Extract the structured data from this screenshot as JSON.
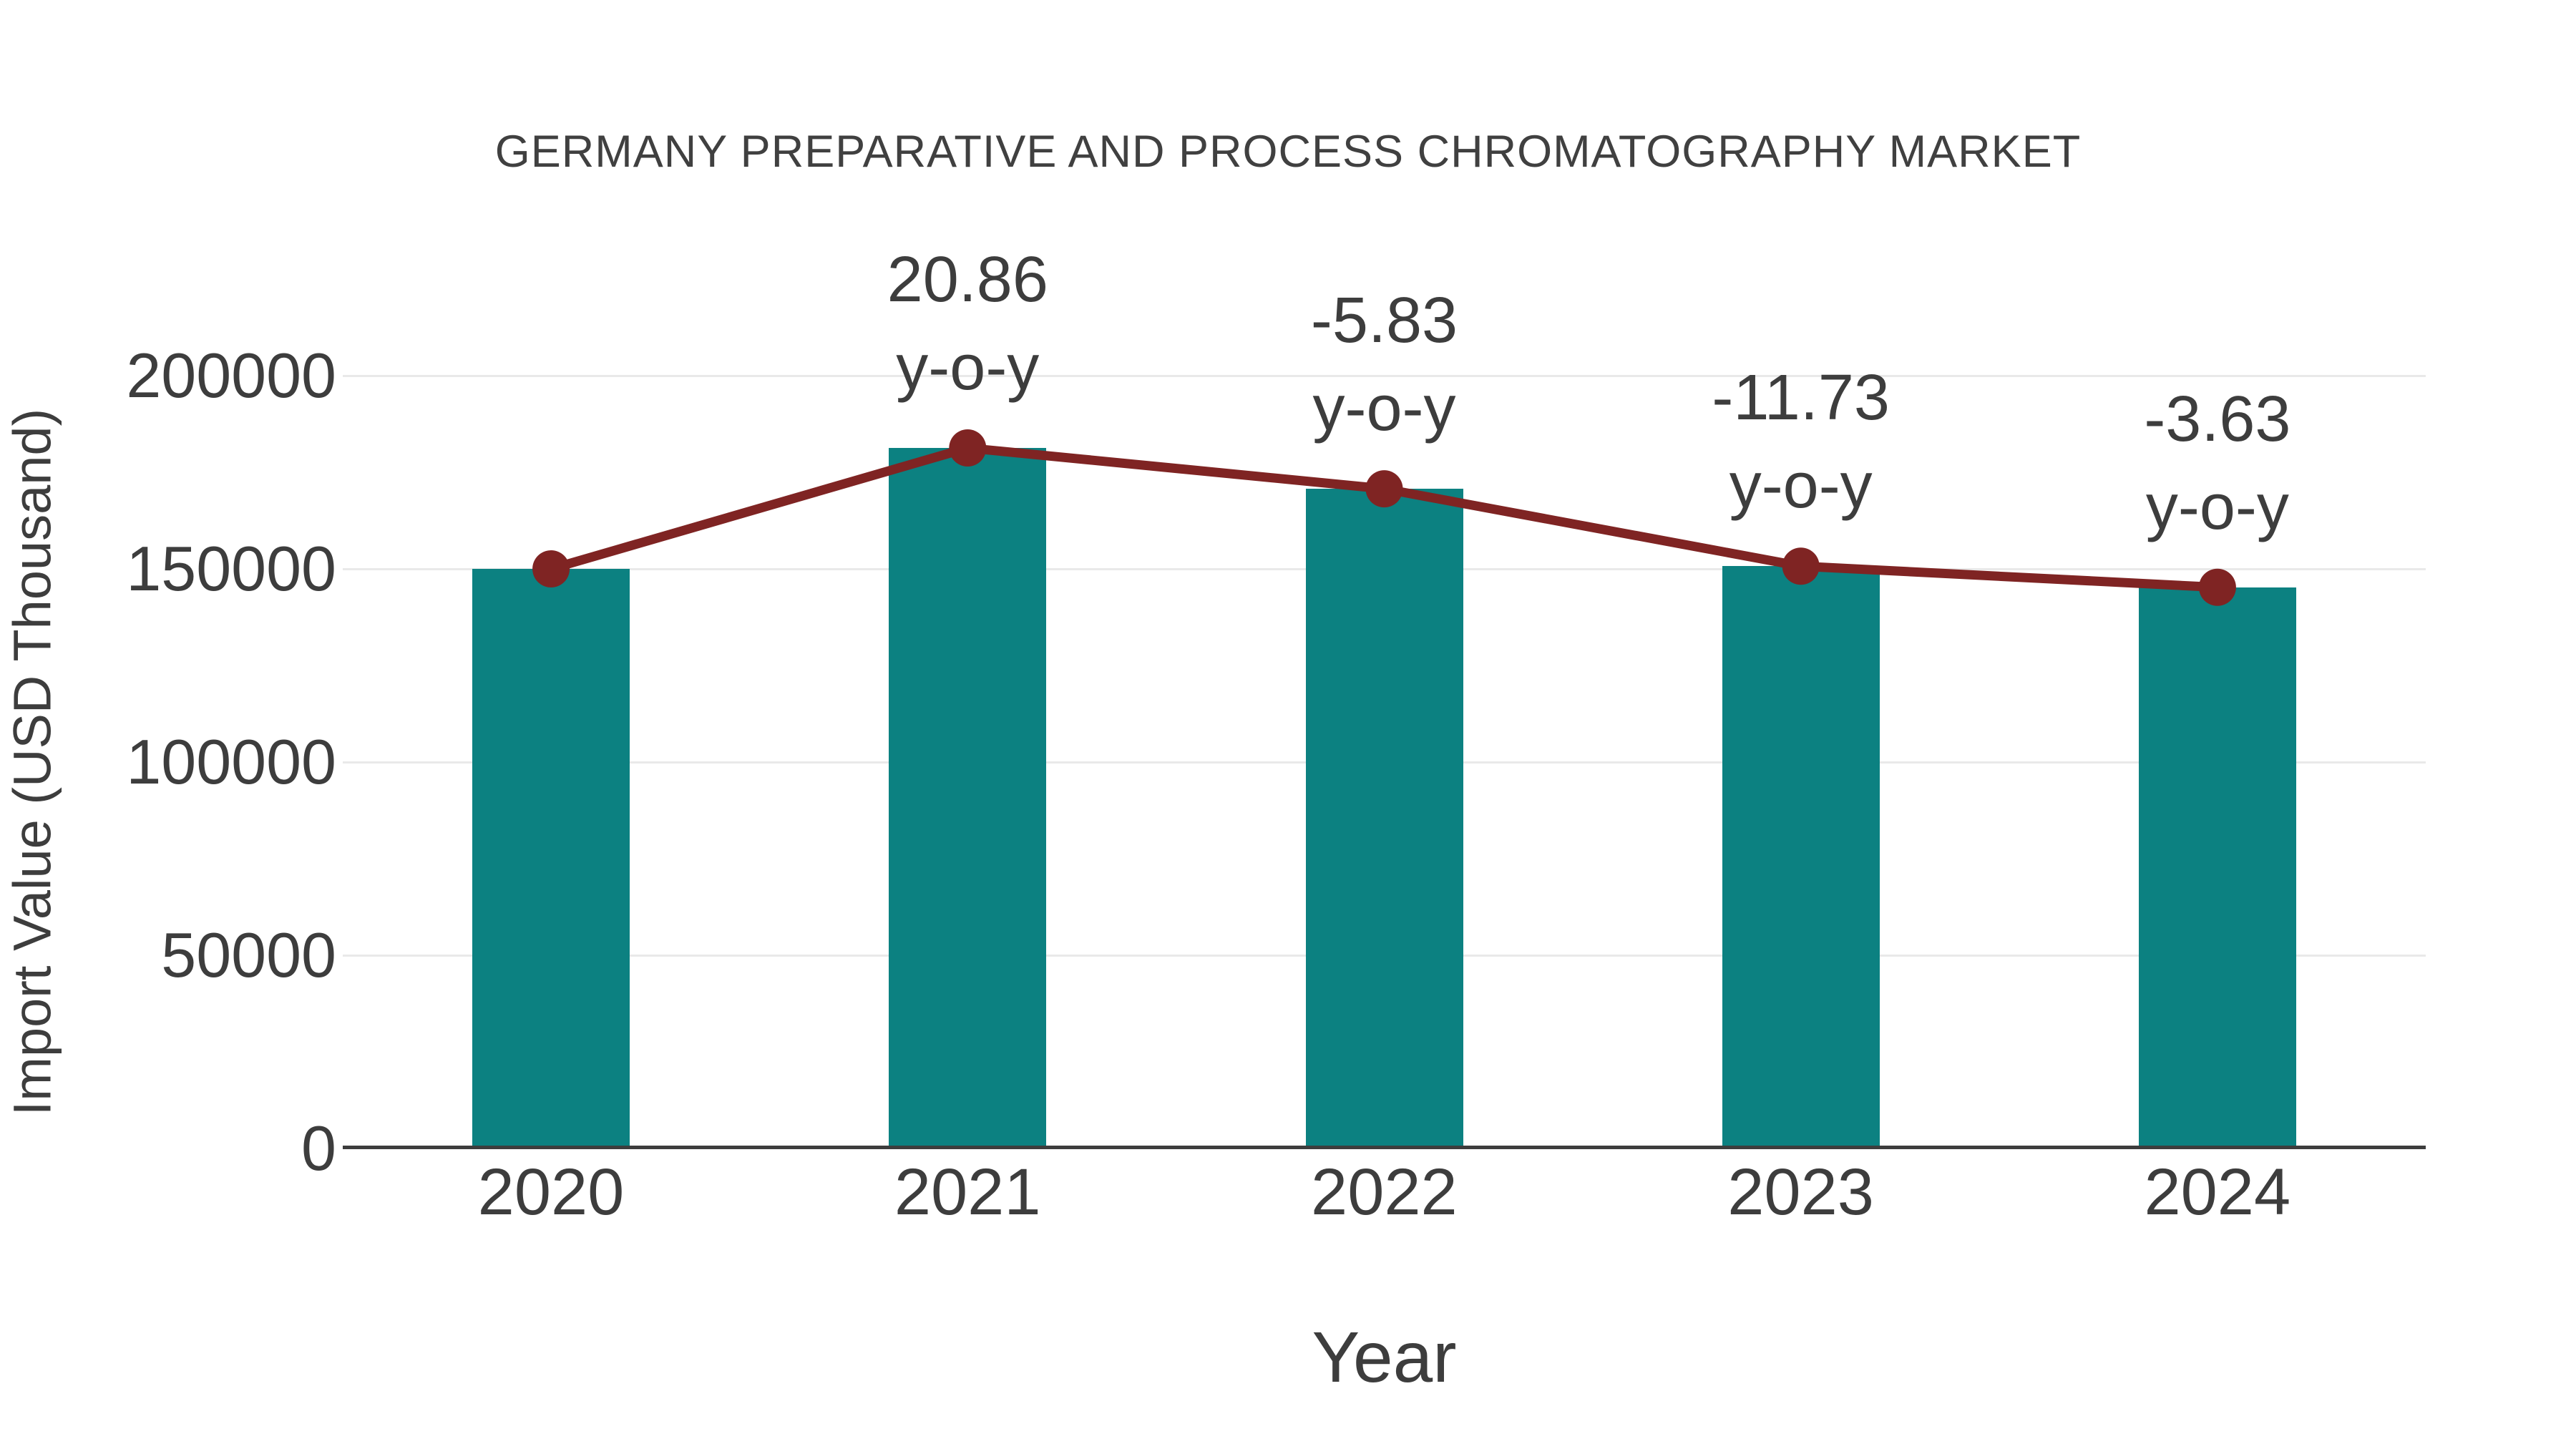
{
  "title": "GERMANY PREPARATIVE AND PROCESS CHROMATOGRAPHY MARKET",
  "axes": {
    "x_label": "Year",
    "y_label": "Import Value (USD Thousand)",
    "y_tick_labels": [
      "0",
      "50000",
      "100000",
      "150000",
      "200000"
    ]
  },
  "chart_data": {
    "type": "bar+line",
    "title": "GERMANY PREPARATIVE AND PROCESS CHROMATOGRAPHY MARKET",
    "xlabel": "Year",
    "ylabel": "Import Value (USD Thousand)",
    "categories": [
      "2020",
      "2021",
      "2022",
      "2023",
      "2024"
    ],
    "series": [
      {
        "name": "Import Value bars",
        "type": "bar",
        "values": [
          150000,
          181290,
          170721,
          150694,
          145224
        ]
      },
      {
        "name": "Import Value trend line",
        "type": "line",
        "values": [
          150000,
          181290,
          170721,
          150694,
          145224
        ]
      }
    ],
    "yoy_labels": [
      null,
      "20.86",
      "-5.83",
      "-11.73",
      "-3.63"
    ],
    "annotation_suffix": "y-o-y",
    "y_ticks": [
      0,
      50000,
      100000,
      150000,
      200000
    ],
    "ylim": [
      0,
      234000
    ],
    "grid": true,
    "legend": "none"
  },
  "colors": {
    "bar": "#0c8181",
    "line": "#7f2423",
    "grid": "#e9e9e9",
    "axis_line": "#3d3d3d",
    "text": "#3d3d3d",
    "title": "#404040"
  }
}
